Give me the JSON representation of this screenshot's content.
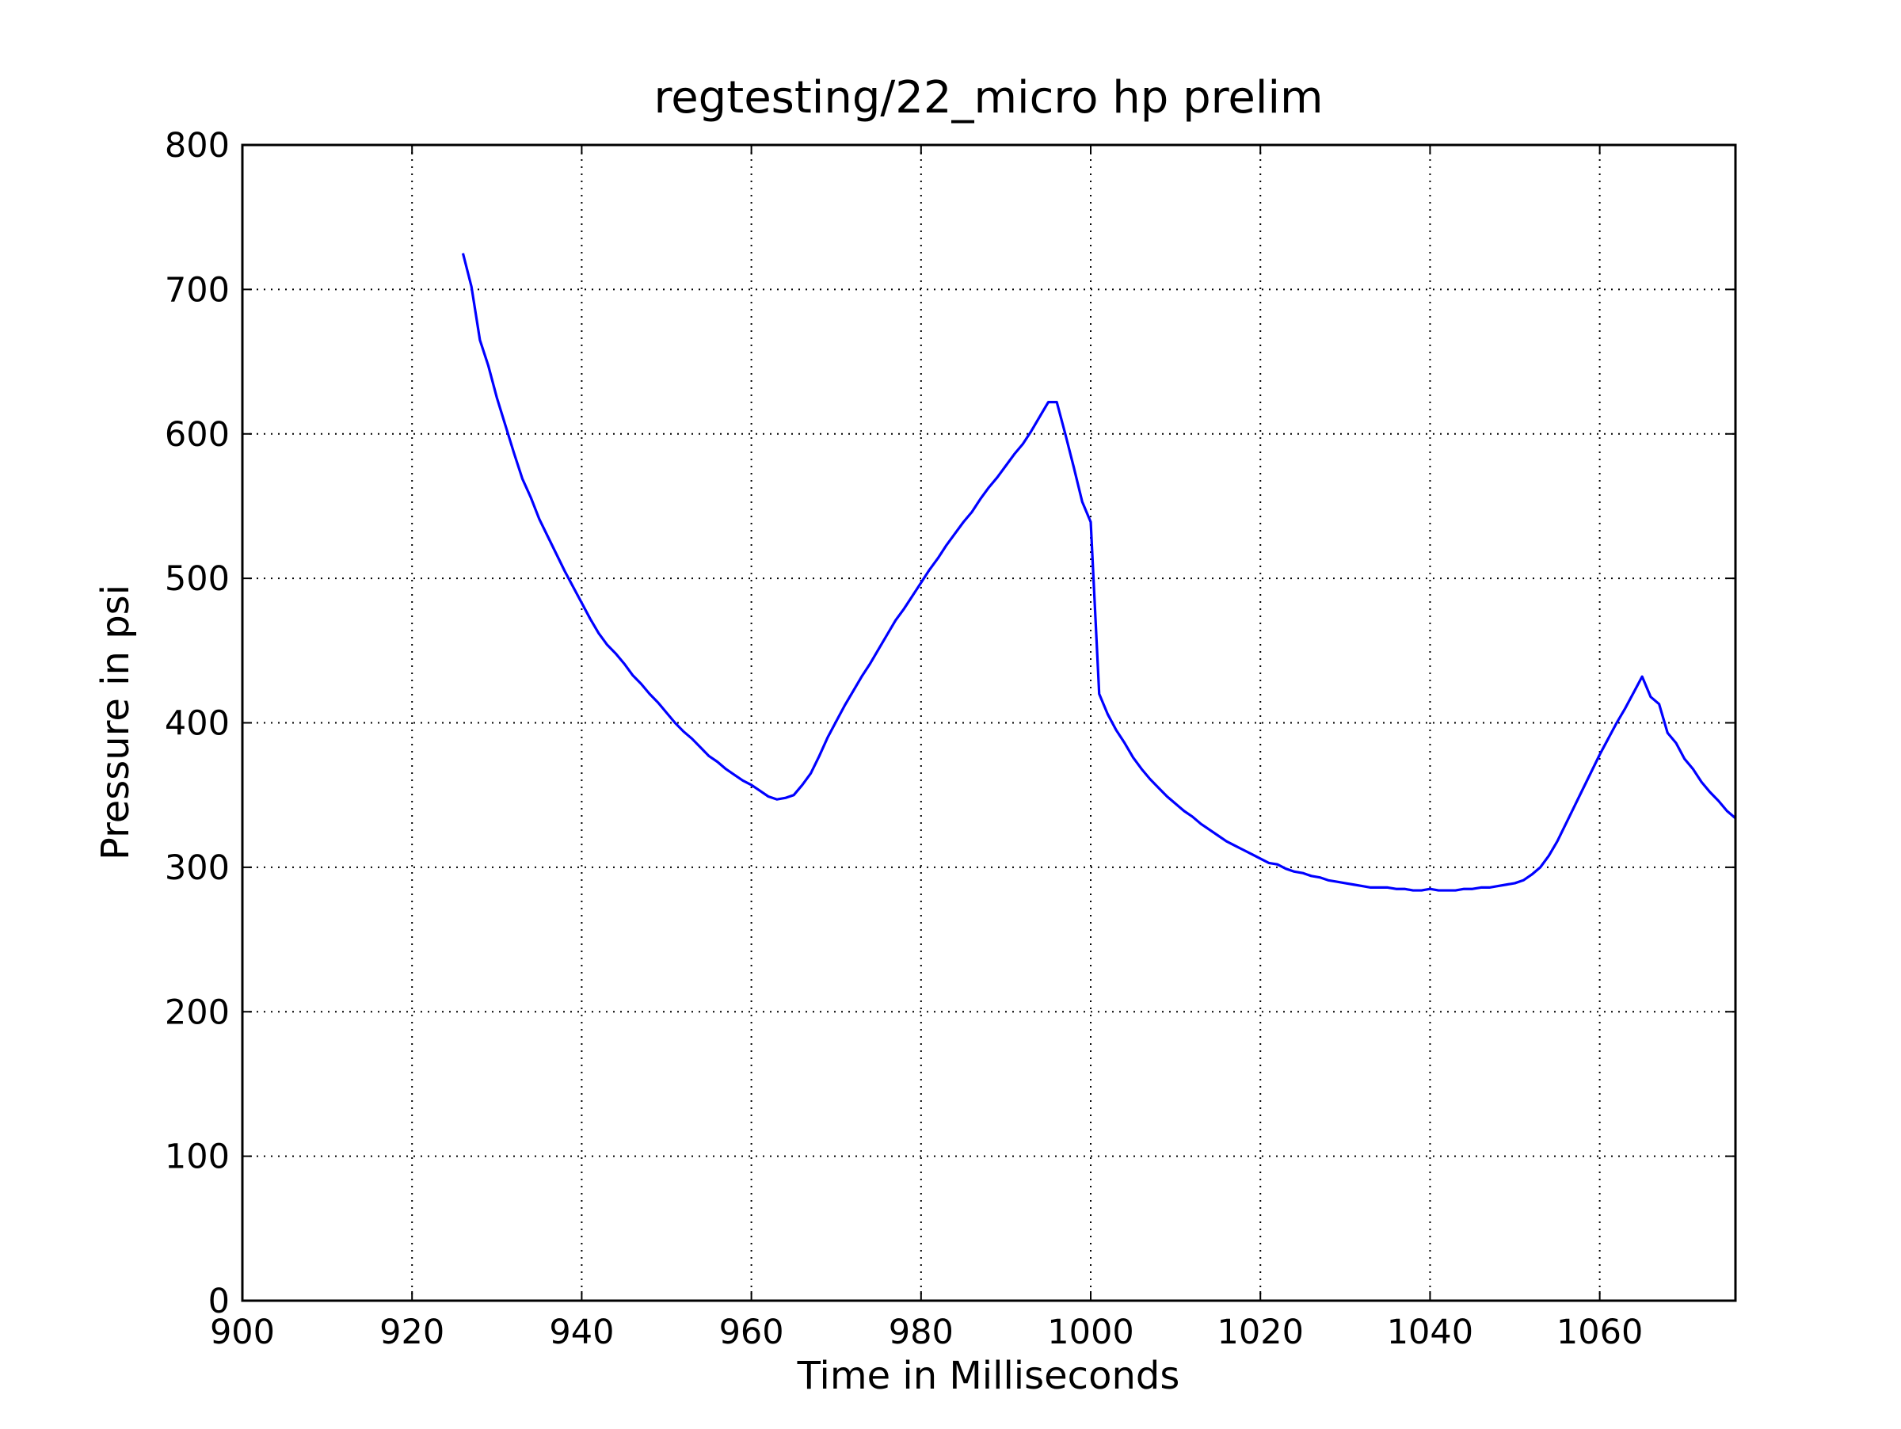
{
  "chart_data": {
    "type": "line",
    "title": "regtesting/22_micro hp prelim",
    "xlabel": "Time in Milliseconds",
    "ylabel": "Pressure in psi",
    "xlim": [
      900,
      1076
    ],
    "ylim": [
      0,
      800
    ],
    "xticks": [
      900,
      920,
      940,
      960,
      980,
      1000,
      1020,
      1040,
      1060
    ],
    "yticks": [
      0,
      100,
      200,
      300,
      400,
      500,
      600,
      700,
      800
    ],
    "grid": true,
    "x": [
      926,
      927,
      928,
      929,
      930,
      931,
      932,
      933,
      934,
      935,
      936,
      937,
      938,
      939,
      940,
      941,
      942,
      943,
      944,
      945,
      946,
      947,
      948,
      949,
      950,
      951,
      952,
      953,
      954,
      955,
      956,
      957,
      958,
      959,
      960,
      961,
      962,
      963,
      964,
      965,
      966,
      967,
      968,
      969,
      970,
      971,
      972,
      973,
      974,
      975,
      976,
      977,
      978,
      979,
      980,
      981,
      982,
      983,
      984,
      985,
      986,
      987,
      988,
      989,
      990,
      991,
      992,
      993,
      994,
      995,
      996,
      997,
      998,
      999,
      1000,
      1001,
      1002,
      1003,
      1004,
      1005,
      1006,
      1007,
      1008,
      1009,
      1010,
      1011,
      1012,
      1013,
      1014,
      1015,
      1016,
      1017,
      1018,
      1019,
      1020,
      1021,
      1022,
      1023,
      1024,
      1025,
      1026,
      1027,
      1028,
      1029,
      1030,
      1031,
      1032,
      1033,
      1034,
      1035,
      1036,
      1037,
      1038,
      1039,
      1040,
      1041,
      1042,
      1043,
      1044,
      1045,
      1046,
      1047,
      1048,
      1049,
      1050,
      1051,
      1052,
      1053,
      1054,
      1055,
      1056,
      1057,
      1058,
      1059,
      1060,
      1061,
      1062,
      1063,
      1064,
      1065,
      1066,
      1067,
      1068,
      1069,
      1070,
      1071,
      1072,
      1073,
      1074,
      1075,
      1076
    ],
    "series": [
      {
        "name": "pressure",
        "color": "#0000ff",
        "values": [
          725,
          702,
          665,
          647,
          625,
          606,
          587,
          569,
          556,
          541,
          529,
          517,
          505,
          494,
          483,
          472,
          462,
          454,
          448,
          441,
          433,
          427,
          420,
          414,
          407,
          400,
          394,
          389,
          383,
          377,
          373,
          368,
          364,
          360,
          357,
          353,
          349,
          347,
          348,
          350,
          357,
          365,
          377,
          390,
          401,
          412,
          422,
          432,
          441,
          451,
          461,
          471,
          479,
          488,
          497,
          506,
          514,
          523,
          531,
          539,
          546,
          555,
          563,
          570,
          578,
          586,
          593,
          602,
          612,
          622,
          622,
          600,
          577,
          553,
          539,
          420,
          406,
          395,
          386,
          376,
          368,
          361,
          355,
          349,
          344,
          339,
          335,
          330,
          326,
          322,
          318,
          315,
          312,
          309,
          306,
          303,
          302,
          299,
          297,
          296,
          294,
          293,
          291,
          290,
          289,
          288,
          287,
          286,
          286,
          286,
          285,
          285,
          284,
          284,
          285,
          284,
          284,
          284,
          285,
          285,
          286,
          286,
          287,
          288,
          289,
          291,
          295,
          300,
          308,
          318,
          330,
          342,
          354,
          366,
          378,
          389,
          400,
          410,
          421,
          432,
          418,
          413,
          393,
          386,
          375,
          368,
          359,
          352,
          346,
          339,
          334
        ]
      }
    ]
  }
}
